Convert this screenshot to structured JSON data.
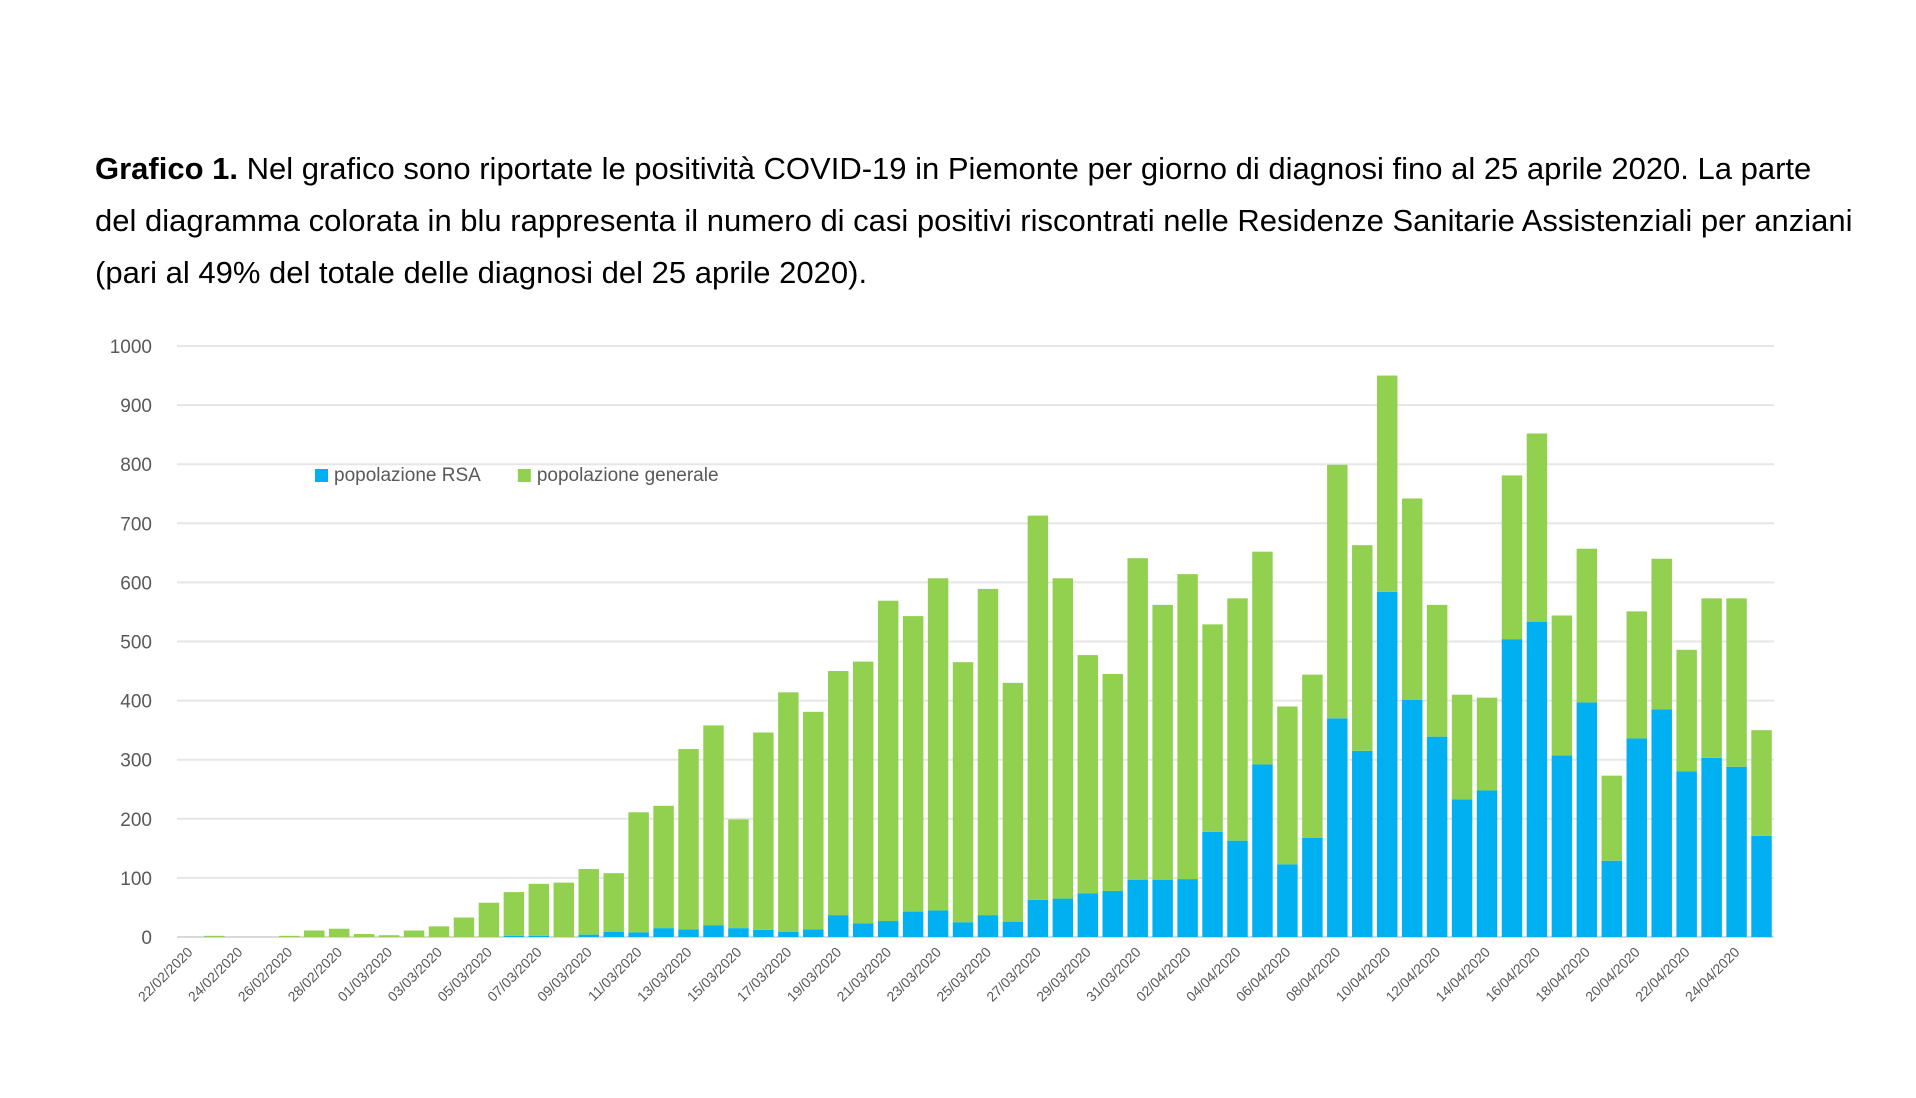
{
  "caption": {
    "bold": "Grafico 1.",
    "text": " Nel grafico sono riportate le positività COVID-19 in Piemonte per giorno di diagnosi fino al 25 aprile 2020. La parte del diagramma colorata in blu rappresenta il numero di casi positivi riscontrati nelle Residenze Sanitarie Assistenziali per anziani (pari al 49% del totale delle diagnosi del 25 aprile 2020)."
  },
  "chart_data": {
    "type": "bar",
    "stacked": true,
    "ylim": [
      0,
      1000
    ],
    "y_ticks": [
      "0",
      "100",
      "200",
      "300",
      "400",
      "500",
      "600",
      "700",
      "800",
      "900",
      "1000"
    ],
    "grid": true,
    "legend_placement": "top-left",
    "x_tick_labels": [
      "22/02/2020",
      "24/02/2020",
      "26/02/2020",
      "28/02/2020",
      "01/03/2020",
      "03/03/2020",
      "05/03/2020",
      "07/03/2020",
      "09/03/2020",
      "11/03/2020",
      "13/03/2020",
      "15/03/2020",
      "17/03/2020",
      "19/03/2020",
      "21/03/2020",
      "23/03/2020",
      "25/03/2020",
      "27/03/2020",
      "29/03/2020",
      "31/03/2020",
      "02/04/2020",
      "04/04/2020",
      "06/04/2020",
      "08/04/2020",
      "10/04/2020",
      "12/04/2020",
      "14/04/2020",
      "16/04/2020",
      "18/04/2020",
      "20/04/2020",
      "22/04/2020",
      "24/04/2020"
    ],
    "series": [
      {
        "name": "popolazione RSA",
        "color": "#00b0f0",
        "values": [
          0,
          0,
          0,
          0,
          0,
          0,
          0,
          0,
          0,
          0,
          0,
          0,
          0,
          2,
          2,
          0,
          4,
          9,
          8,
          15,
          13,
          20,
          15,
          12,
          9,
          13,
          37,
          23,
          27,
          43,
          45,
          25,
          37,
          26,
          63,
          65,
          74,
          78,
          97,
          97,
          98,
          178,
          163,
          292,
          123,
          168,
          370,
          315,
          584,
          401,
          339,
          233,
          248,
          504,
          533,
          307,
          397,
          129,
          336,
          385,
          280,
          303,
          288,
          171
        ]
      },
      {
        "name": "popolazione generale",
        "color": "#92d050",
        "values": [
          0,
          2,
          0,
          0,
          2,
          11,
          14,
          5,
          3,
          11,
          18,
          33,
          58,
          74,
          88,
          92,
          111,
          99,
          203,
          207,
          305,
          338,
          184,
          334,
          405,
          368,
          413,
          443,
          542,
          500,
          562,
          440,
          552,
          404,
          650,
          542,
          403,
          367,
          544,
          465,
          516,
          351,
          410,
          360,
          267,
          276,
          429,
          348,
          366,
          341,
          223,
          177,
          157,
          277,
          319,
          237,
          260,
          144,
          215,
          255,
          206,
          270,
          285,
          179
        ]
      }
    ]
  }
}
